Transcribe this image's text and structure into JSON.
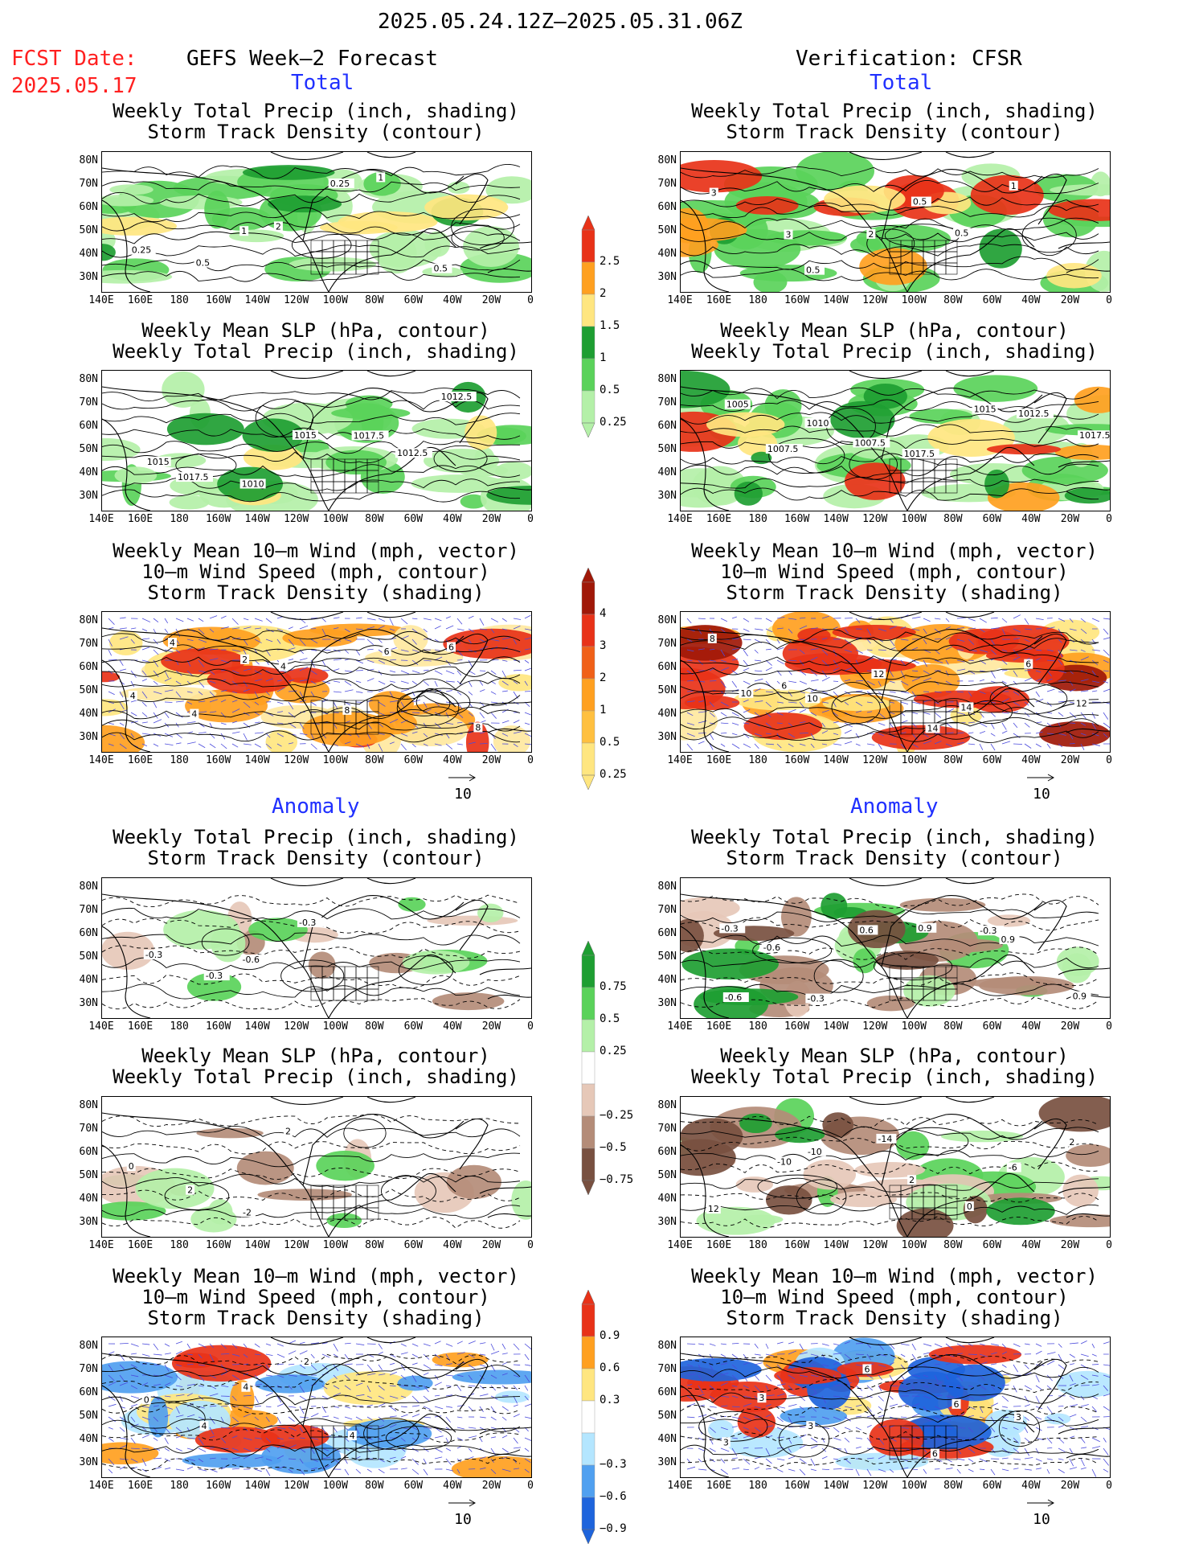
{
  "header": {
    "title": "2025.05.24.12Z–2025.05.31.06Z",
    "fcst_label": "FCST Date:",
    "fcst_date": "2025.05.17",
    "left_heading": "GEFS Week–2 Forecast",
    "right_heading": "Verification: CFSR",
    "total_label": "Total",
    "anomaly_label": "Anomaly"
  },
  "axes": {
    "lat_labels": [
      "80N",
      "70N",
      "60N",
      "50N",
      "40N",
      "30N"
    ],
    "lon_labels": [
      "140E",
      "160E",
      "180",
      "160W",
      "140W",
      "120W",
      "100W",
      "80W",
      "60W",
      "40W",
      "20W",
      "0"
    ]
  },
  "panel_titles": {
    "precip_storm": [
      "Weekly Total Precip (inch, shading)",
      "Storm Track Density (contour)"
    ],
    "slp_precip": [
      "Weekly Mean SLP (hPa, contour)",
      "Weekly Total Precip (inch, shading)"
    ],
    "wind_storm": [
      "Weekly Mean 10–m Wind (mph, vector)",
      "10–m Wind Speed (mph, contour)",
      "Storm Track Density (shading)"
    ]
  },
  "vector_ref": "10",
  "colors": {
    "green_light": "#b4f0a8",
    "green_mid": "#5ad25a",
    "green_dark": "#1e9e32",
    "yellow": "#ffe680",
    "orange": "#ffa020",
    "red": "#e83218",
    "darkred": "#a01808",
    "brown_light": "#e6c8b8",
    "brown_mid": "#b48c78",
    "brown_dark": "#785040",
    "blue_light": "#b4e6ff",
    "blue_mid": "#50a0f0",
    "blue_dark": "#1e64dc",
    "wind_orange_light": "#ffe8a0"
  },
  "chart_data": {
    "type": "heatmap",
    "colorbars": [
      {
        "id": "precip_total",
        "labels": [
          "2.5",
          "2",
          "1.5",
          "1",
          "0.5",
          "0.25"
        ]
      },
      {
        "id": "storm_total",
        "labels": [
          "4",
          "3",
          "2",
          "1",
          "0.5",
          "0.25"
        ]
      },
      {
        "id": "precip_anom",
        "labels": [
          "0.75",
          "0.5",
          "0.25",
          "−0.25",
          "−0.5",
          "−0.75"
        ]
      },
      {
        "id": "storm_anom",
        "labels": [
          "0.9",
          "0.6",
          "0.3",
          "−0.3",
          "−0.6",
          "−0.9"
        ]
      }
    ],
    "panels": [
      {
        "id": "L1",
        "contour_labels": [
          "0.25",
          "0.5",
          "1",
          "2",
          "0.25",
          "1",
          "0.5"
        ]
      },
      {
        "id": "R1",
        "contour_labels": [
          "3",
          "3",
          "0.5",
          "2",
          "0.5",
          "0.5",
          "1"
        ]
      },
      {
        "id": "L2",
        "contour_labels": [
          "1015",
          "1017.5",
          "1010",
          "1015",
          "1017.5",
          "1012.5",
          "1012.5"
        ]
      },
      {
        "id": "R2",
        "contour_labels": [
          "1005",
          "1007.5",
          "1010",
          "1007.5",
          "1017.5",
          "1015",
          "1012.5",
          "1017.5"
        ]
      },
      {
        "id": "L3",
        "contour_labels": [
          "4",
          "4",
          "2",
          "4",
          "8",
          "6",
          "6",
          "8",
          "4"
        ]
      },
      {
        "id": "R3",
        "contour_labels": [
          "8",
          "6",
          "10",
          "12",
          "14",
          "14",
          "6",
          "12",
          "10"
        ]
      },
      {
        "id": "L4",
        "contour_labels": [
          "-0.3",
          "-0.3",
          "-0.6",
          "-0.3"
        ]
      },
      {
        "id": "R4",
        "contour_labels": [
          "-0.6",
          "-0.6",
          "-0.3",
          "0.6",
          "0.9",
          "-0.3",
          "0.9",
          "0.9",
          "-0.3"
        ]
      },
      {
        "id": "L5",
        "contour_labels": [
          "0",
          "2",
          "-2",
          "2"
        ]
      },
      {
        "id": "R5",
        "contour_labels": [
          "12",
          "-10",
          "-10",
          "-14",
          "2",
          "0",
          "-6",
          "2"
        ]
      },
      {
        "id": "L6",
        "contour_labels": [
          "0",
          "4",
          "4",
          "2",
          "4"
        ]
      },
      {
        "id": "R6",
        "contour_labels": [
          "3",
          "3",
          "3",
          "6",
          "6",
          "6",
          "3"
        ]
      }
    ]
  }
}
